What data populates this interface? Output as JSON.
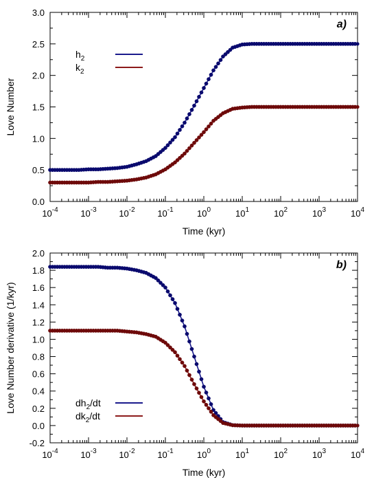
{
  "chart_data": [
    {
      "type": "line",
      "panel_label": "a)",
      "xlabel": "Time (kyr)",
      "ylabel": "Love Number",
      "xscale": "log",
      "xlim": [
        0.0001,
        10000
      ],
      "ylim": [
        0.0,
        3.0
      ],
      "x_ticks": [
        {
          "base": "10",
          "exp": "-4"
        },
        {
          "base": "10",
          "exp": "-3"
        },
        {
          "base": "10",
          "exp": "-2"
        },
        {
          "base": "10",
          "exp": "-1"
        },
        {
          "base": "10",
          "exp": "0"
        },
        {
          "base": "10",
          "exp": "1"
        },
        {
          "base": "10",
          "exp": "2"
        },
        {
          "base": "10",
          "exp": "3"
        },
        {
          "base": "10",
          "exp": "4"
        }
      ],
      "y_ticks": [
        "0.0",
        "0.5",
        "1.0",
        "1.5",
        "2.0",
        "2.5",
        "3.0"
      ],
      "legend_position": "top-left",
      "grid": false,
      "series": [
        {
          "name": "h₂",
          "legend": {
            "pre": "h",
            "sub": "2",
            "post": ""
          },
          "color": "#1a1a8c",
          "marker_color": "#0a0a6e",
          "x": [
            0.0001,
            0.000178,
            0.000316,
            0.000562,
            0.001,
            0.00178,
            0.00316,
            0.00562,
            0.01,
            0.0178,
            0.0316,
            0.0562,
            0.1,
            0.178,
            0.316,
            0.562,
            1.0,
            1.78,
            3.16,
            5.62,
            10.0,
            17.8,
            31.6,
            56.2,
            100,
            178,
            316,
            562,
            1000,
            1780,
            3160,
            5620,
            10000
          ],
          "y": [
            0.5,
            0.5,
            0.5,
            0.5,
            0.51,
            0.51,
            0.52,
            0.53,
            0.55,
            0.59,
            0.64,
            0.72,
            0.85,
            1.02,
            1.25,
            1.52,
            1.8,
            2.08,
            2.3,
            2.44,
            2.49,
            2.5,
            2.5,
            2.5,
            2.5,
            2.5,
            2.5,
            2.5,
            2.5,
            2.5,
            2.5,
            2.5,
            2.5
          ]
        },
        {
          "name": "k₂",
          "legend": {
            "pre": "k",
            "sub": "2",
            "post": ""
          },
          "color": "#8c1a1a",
          "marker_color": "#6e0a0a",
          "x": [
            0.0001,
            0.000178,
            0.000316,
            0.000562,
            0.001,
            0.00178,
            0.00316,
            0.00562,
            0.01,
            0.0178,
            0.0316,
            0.0562,
            0.1,
            0.178,
            0.316,
            0.562,
            1.0,
            1.78,
            3.16,
            5.62,
            10.0,
            17.8,
            31.6,
            56.2,
            100,
            178,
            316,
            562,
            1000,
            1780,
            3160,
            5620,
            10000
          ],
          "y": [
            0.3,
            0.3,
            0.3,
            0.3,
            0.3,
            0.31,
            0.31,
            0.32,
            0.33,
            0.35,
            0.38,
            0.43,
            0.51,
            0.62,
            0.76,
            0.93,
            1.1,
            1.28,
            1.4,
            1.47,
            1.49,
            1.5,
            1.5,
            1.5,
            1.5,
            1.5,
            1.5,
            1.5,
            1.5,
            1.5,
            1.5,
            1.5,
            1.5
          ]
        }
      ]
    },
    {
      "type": "line",
      "panel_label": "b)",
      "xlabel": "Time (kyr)",
      "ylabel": "Love Number derivative (1/kyr)",
      "xscale": "log",
      "xlim": [
        0.0001,
        10000
      ],
      "ylim": [
        -0.2,
        2.0
      ],
      "x_ticks": [
        {
          "base": "10",
          "exp": "-4"
        },
        {
          "base": "10",
          "exp": "-3"
        },
        {
          "base": "10",
          "exp": "-2"
        },
        {
          "base": "10",
          "exp": "-1"
        },
        {
          "base": "10",
          "exp": "0"
        },
        {
          "base": "10",
          "exp": "1"
        },
        {
          "base": "10",
          "exp": "2"
        },
        {
          "base": "10",
          "exp": "3"
        },
        {
          "base": "10",
          "exp": "4"
        }
      ],
      "y_ticks": [
        "-0.2",
        "0.0",
        "0.2",
        "0.4",
        "0.6",
        "0.8",
        "1.0",
        "1.2",
        "1.4",
        "1.6",
        "1.8",
        "2.0"
      ],
      "legend_position": "bottom-left",
      "grid": false,
      "series": [
        {
          "name": "dh₂/dt",
          "legend": {
            "pre": "dh",
            "sub": "2",
            "post": "/dt"
          },
          "color": "#1a1a8c",
          "marker_color": "#0a0a6e",
          "x": [
            0.0001,
            0.000178,
            0.000316,
            0.000562,
            0.001,
            0.00178,
            0.00316,
            0.00562,
            0.01,
            0.0178,
            0.0316,
            0.0562,
            0.1,
            0.178,
            0.316,
            0.562,
            1.0,
            1.78,
            3.16,
            5.62,
            10.0,
            17.8,
            31.6,
            56.2,
            100,
            178,
            316,
            562,
            1000,
            1780,
            3160,
            5620,
            10000
          ],
          "y": [
            1.84,
            1.84,
            1.84,
            1.84,
            1.84,
            1.84,
            1.83,
            1.83,
            1.82,
            1.8,
            1.77,
            1.71,
            1.6,
            1.42,
            1.15,
            0.8,
            0.45,
            0.18,
            0.04,
            0.005,
            0.0,
            0.0,
            0.0,
            0.0,
            0.0,
            0.0,
            0.0,
            0.0,
            0.0,
            0.0,
            0.0,
            0.0,
            0.0
          ]
        },
        {
          "name": "dk₂/dt",
          "legend": {
            "pre": "dk",
            "sub": "2",
            "post": "/dt"
          },
          "color": "#8c1a1a",
          "marker_color": "#6e0a0a",
          "x": [
            0.0001,
            0.000178,
            0.000316,
            0.000562,
            0.001,
            0.00178,
            0.00316,
            0.00562,
            0.01,
            0.0178,
            0.0316,
            0.0562,
            0.1,
            0.178,
            0.316,
            0.562,
            1.0,
            1.78,
            3.16,
            5.62,
            10.0,
            17.8,
            31.6,
            56.2,
            100,
            178,
            316,
            562,
            1000,
            1780,
            3160,
            5620,
            10000
          ],
          "y": [
            1.1,
            1.1,
            1.1,
            1.1,
            1.1,
            1.1,
            1.1,
            1.1,
            1.09,
            1.08,
            1.06,
            1.03,
            0.96,
            0.85,
            0.69,
            0.48,
            0.28,
            0.12,
            0.03,
            0.004,
            0.0,
            0.0,
            0.0,
            0.0,
            0.0,
            0.0,
            0.0,
            0.0,
            0.0,
            0.0,
            0.0,
            0.0,
            0.0
          ]
        }
      ]
    }
  ]
}
